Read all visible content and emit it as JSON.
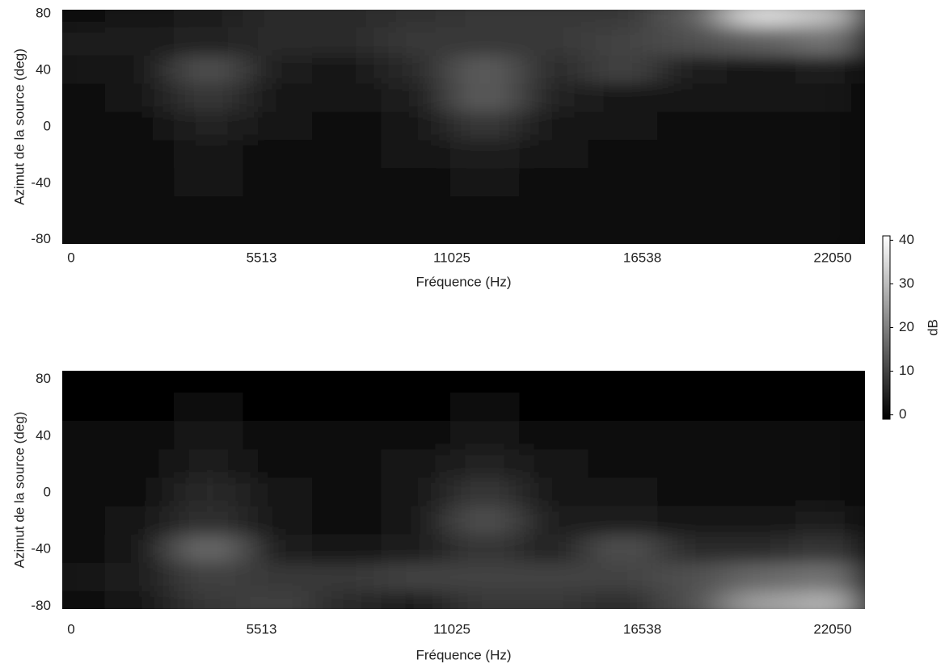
{
  "chart_data": [
    {
      "type": "heatmap",
      "xlabel": "Fréquence (Hz)",
      "ylabel": "Azimut de la source (deg)",
      "x": [
        0,
        2000,
        4000,
        6000,
        8000,
        10000,
        12000,
        14000,
        16000,
        18000,
        20000,
        22000
      ],
      "y": [
        80,
        60,
        40,
        20,
        0,
        -20,
        -40,
        -60,
        -80
      ],
      "z": [
        [
          1,
          2,
          4,
          6,
          6,
          7,
          8,
          8,
          8,
          14,
          35,
          30
        ],
        [
          4,
          4,
          5,
          6,
          6,
          8,
          8,
          8,
          10,
          12,
          15,
          18
        ],
        [
          2,
          3,
          12,
          4,
          3,
          6,
          14,
          6,
          10,
          4,
          3,
          4
        ],
        [
          1,
          2,
          8,
          3,
          2,
          4,
          14,
          5,
          3,
          3,
          2,
          2
        ],
        [
          1,
          1,
          5,
          2,
          1,
          3,
          8,
          3,
          2,
          1,
          1,
          1
        ],
        [
          1,
          1,
          3,
          1,
          1,
          2,
          4,
          2,
          1,
          1,
          1,
          1
        ],
        [
          1,
          1,
          2,
          1,
          1,
          1,
          2,
          1,
          1,
          1,
          1,
          1
        ],
        [
          1,
          1,
          1,
          1,
          1,
          1,
          1,
          1,
          1,
          1,
          1,
          1
        ],
        [
          1,
          1,
          1,
          1,
          1,
          1,
          1,
          1,
          1,
          1,
          1,
          1
        ]
      ],
      "xlim": [
        -257,
        22986
      ],
      "ylim": [
        -83,
        83
      ],
      "xticks": [
        0,
        5513,
        11025,
        16538,
        22050
      ],
      "yticks": [
        -80,
        -40,
        0,
        40,
        80
      ]
    },
    {
      "type": "heatmap",
      "xlabel": "Fréquence (Hz)",
      "ylabel": "Azimut de la source (deg)",
      "x": [
        0,
        2000,
        4000,
        6000,
        8000,
        10000,
        12000,
        14000,
        16000,
        18000,
        20000,
        22000
      ],
      "y": [
        80,
        60,
        40,
        20,
        0,
        -20,
        -40,
        -60,
        -80
      ],
      "z": [
        [
          0,
          0,
          0,
          0,
          0,
          0,
          0,
          0,
          0,
          0,
          0,
          0
        ],
        [
          0,
          0,
          1,
          0,
          0,
          0,
          1,
          0,
          0,
          0,
          0,
          0
        ],
        [
          1,
          1,
          2,
          1,
          1,
          1,
          2,
          1,
          1,
          1,
          1,
          1
        ],
        [
          1,
          1,
          4,
          1,
          1,
          2,
          5,
          2,
          1,
          1,
          1,
          1
        ],
        [
          1,
          1,
          6,
          2,
          1,
          3,
          8,
          3,
          2,
          1,
          1,
          1
        ],
        [
          1,
          2,
          7,
          2,
          1,
          3,
          12,
          4,
          4,
          3,
          3,
          4
        ],
        [
          1,
          3,
          16,
          4,
          3,
          4,
          8,
          5,
          12,
          6,
          6,
          8
        ],
        [
          2,
          4,
          10,
          8,
          8,
          10,
          10,
          10,
          10,
          12,
          16,
          18
        ],
        [
          1,
          3,
          8,
          10,
          6,
          4,
          8,
          8,
          6,
          12,
          25,
          28
        ]
      ],
      "xlim": [
        -257,
        22986
      ],
      "ylim": [
        -82,
        86
      ],
      "xticks": [
        0,
        5513,
        11025,
        16538,
        22050
      ],
      "yticks": [
        -80,
        -40,
        0,
        40,
        80
      ]
    }
  ],
  "colorbar": {
    "label": "dB",
    "lim": [
      -1,
      41
    ],
    "ticks": [
      0,
      10,
      20,
      30,
      40
    ]
  }
}
